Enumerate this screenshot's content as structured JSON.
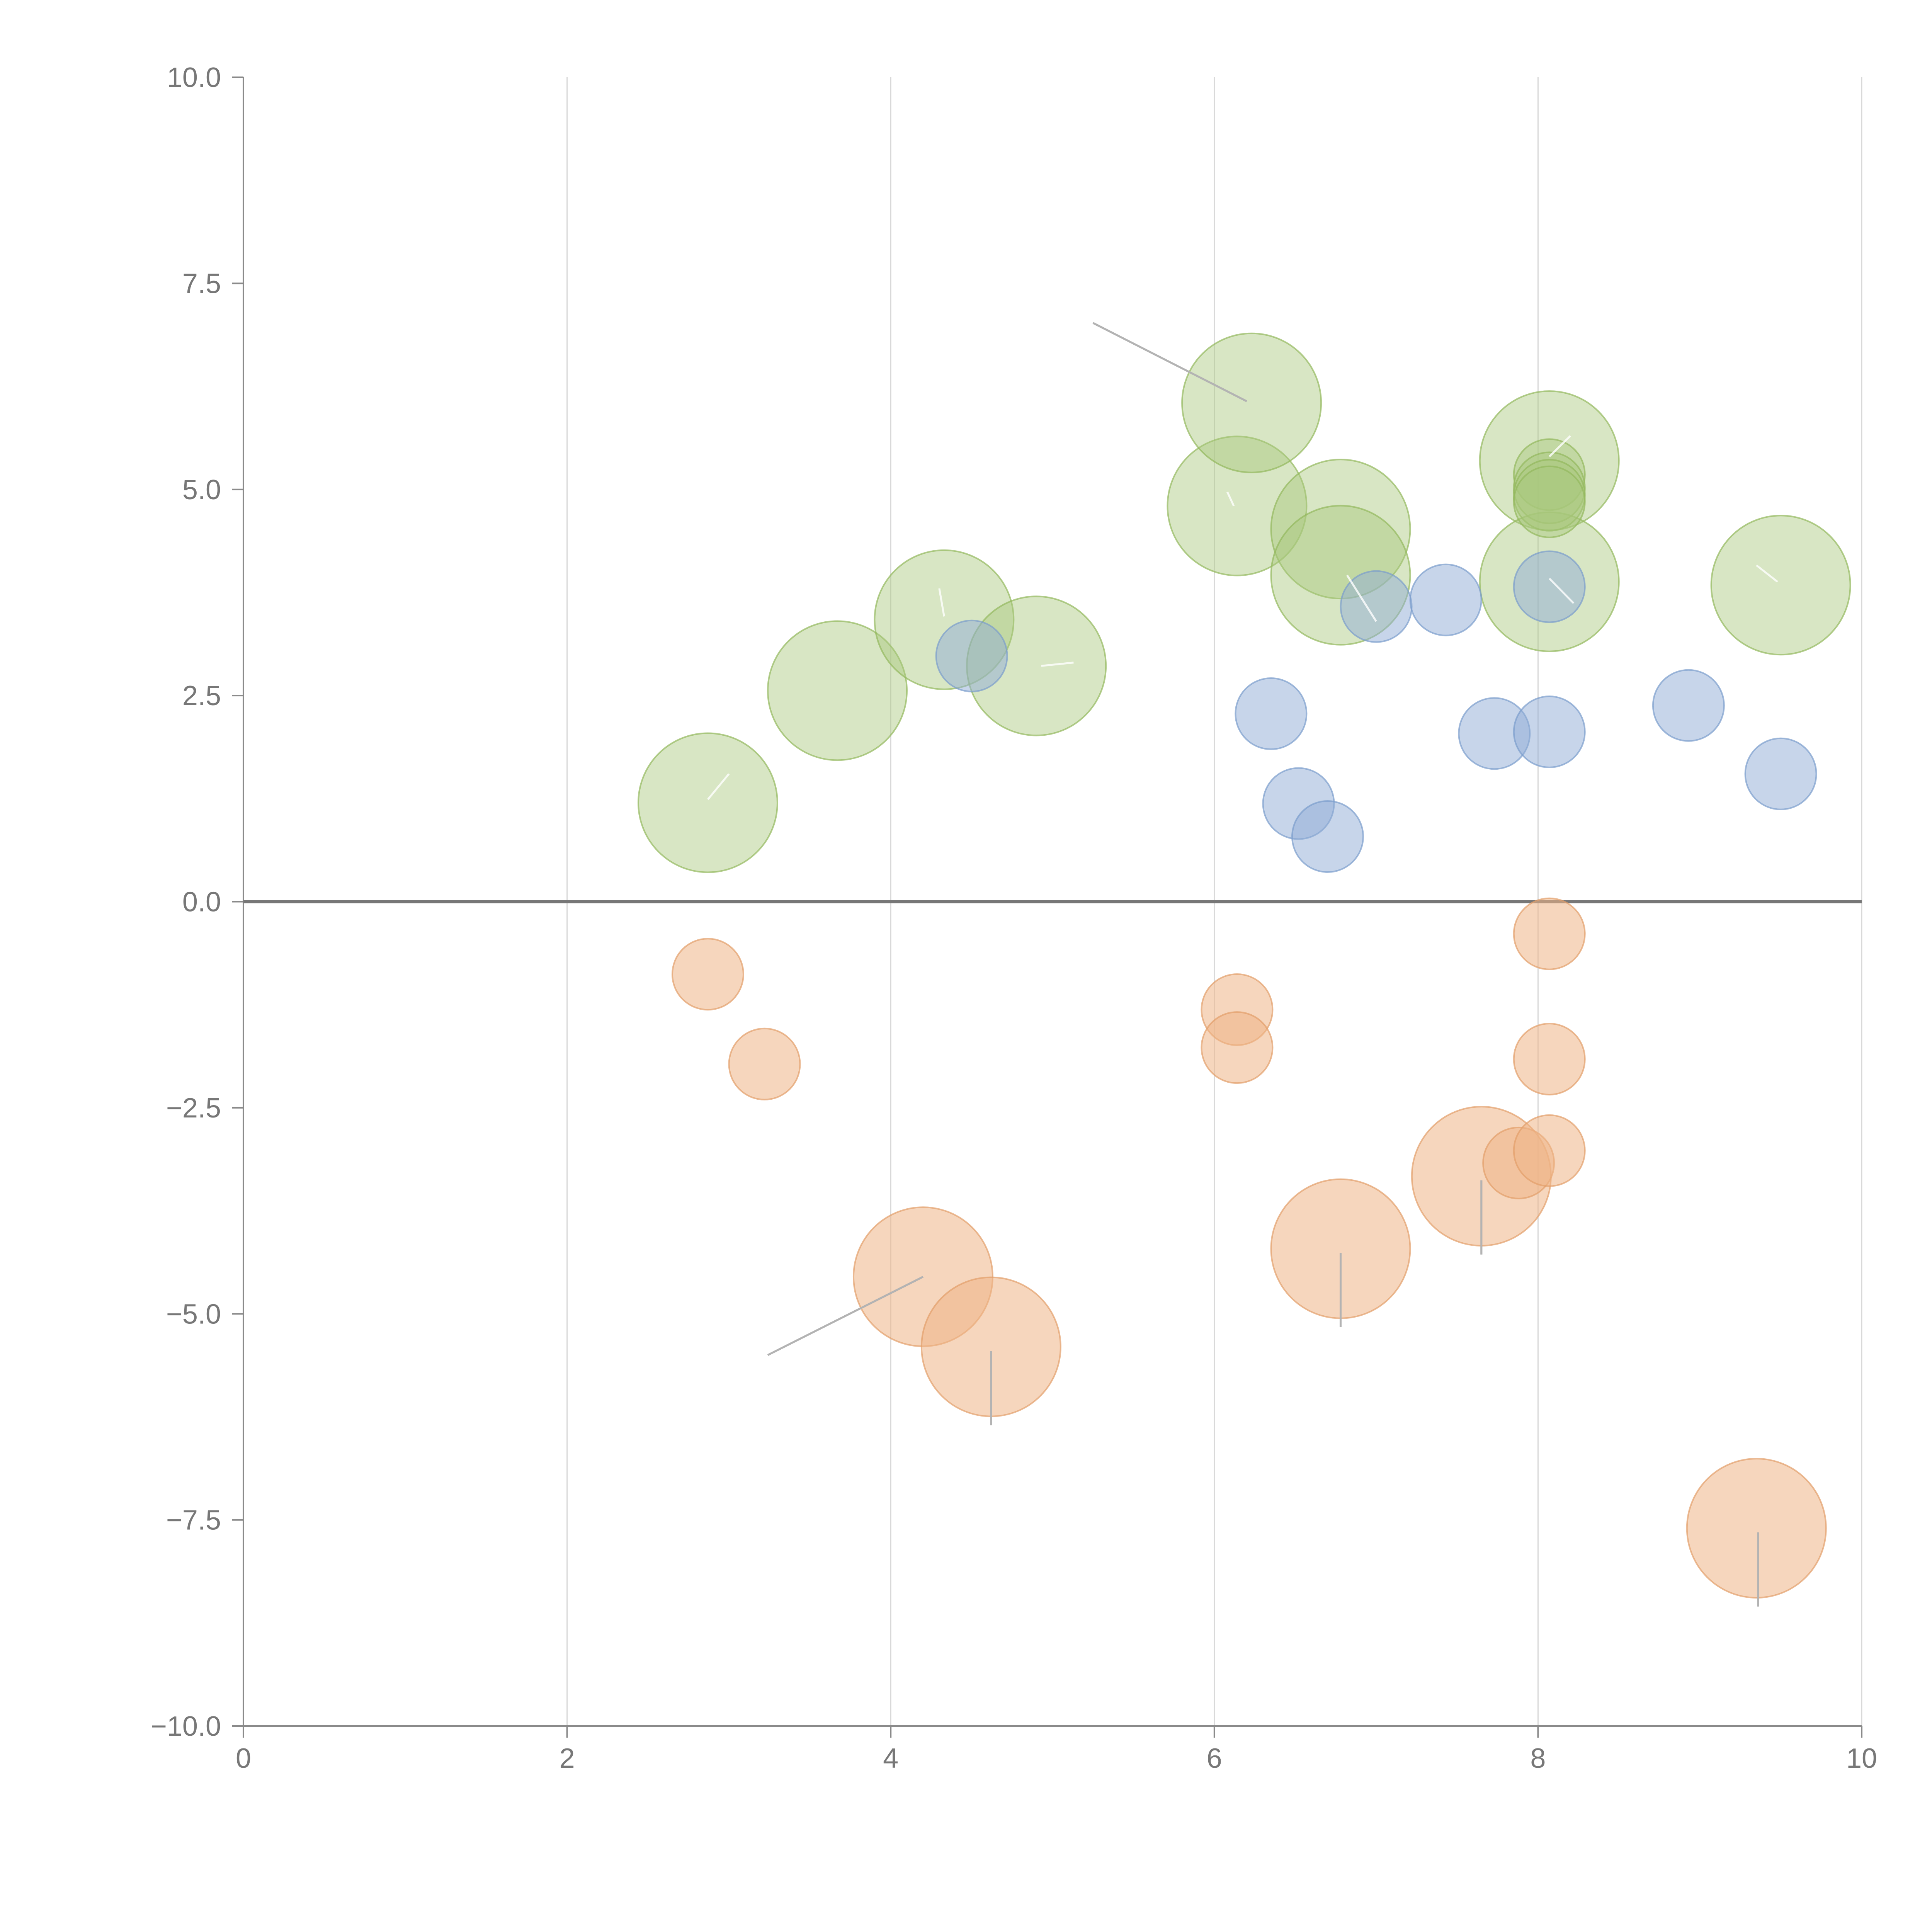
{
  "chart_data": {
    "type": "scatter",
    "title": "",
    "xlabel": "",
    "ylabel": "",
    "xlim": [
      0,
      10
    ],
    "ylim": [
      -10,
      10
    ],
    "grid": {
      "vertical": true,
      "horizontal": false
    },
    "zero_line": true,
    "x_ticks": [
      "0",
      "2",
      "4",
      "6",
      "8",
      "10"
    ],
    "x_tick_values": [
      0,
      2,
      4,
      6,
      8,
      10
    ],
    "y_ticks": [
      "10.0",
      "7.5",
      "5.0",
      "2.5",
      "0.0",
      "−2.5",
      "−5.0",
      "−7.5",
      "−10.0"
    ],
    "y_tick_values": [
      10,
      7.5,
      5,
      2.5,
      0,
      -2.5,
      -5,
      -7.5,
      -10
    ],
    "series": [
      {
        "name": "green",
        "color": "#a9c77d",
        "stroke": "#93b85c",
        "fill_opacity": 0.45,
        "points": [
          {
            "x": 2.87,
            "y": 1.2,
            "size": 4.5
          },
          {
            "x": 3.67,
            "y": 2.56,
            "size": 4.5
          },
          {
            "x": 4.33,
            "y": 3.42,
            "size": 4.5
          },
          {
            "x": 4.9,
            "y": 2.86,
            "size": 4.5
          },
          {
            "x": 6.14,
            "y": 4.8,
            "size": 4.5
          },
          {
            "x": 6.23,
            "y": 6.05,
            "size": 4.5
          },
          {
            "x": 6.78,
            "y": 4.52,
            "size": 4.5
          },
          {
            "x": 6.78,
            "y": 3.96,
            "size": 4.5
          },
          {
            "x": 8.07,
            "y": 5.35,
            "size": 4.5
          },
          {
            "x": 8.07,
            "y": 3.88,
            "size": 4.5
          },
          {
            "x": 9.5,
            "y": 3.84,
            "size": 4.5
          },
          {
            "x": 8.07,
            "y": 5.18,
            "size": 2.3
          },
          {
            "x": 8.07,
            "y": 5.02,
            "size": 2.3
          },
          {
            "x": 8.07,
            "y": 4.93,
            "size": 2.3
          },
          {
            "x": 8.07,
            "y": 4.85,
            "size": 2.3
          }
        ]
      },
      {
        "name": "blue",
        "color": "#8fabd6",
        "stroke": "#7a9ccc",
        "fill_opacity": 0.5,
        "points": [
          {
            "x": 4.5,
            "y": 2.98,
            "size": 2.3
          },
          {
            "x": 6.35,
            "y": 2.28,
            "size": 2.3
          },
          {
            "x": 6.52,
            "y": 1.19,
            "size": 2.3
          },
          {
            "x": 6.7,
            "y": 0.79,
            "size": 2.3
          },
          {
            "x": 7.0,
            "y": 3.58,
            "size": 2.3
          },
          {
            "x": 7.43,
            "y": 3.66,
            "size": 2.3
          },
          {
            "x": 7.73,
            "y": 2.04,
            "size": 2.3
          },
          {
            "x": 8.07,
            "y": 2.06,
            "size": 2.3
          },
          {
            "x": 8.07,
            "y": 3.82,
            "size": 2.3
          },
          {
            "x": 8.93,
            "y": 2.38,
            "size": 2.3
          },
          {
            "x": 9.5,
            "y": 1.55,
            "size": 2.3
          }
        ]
      },
      {
        "name": "orange",
        "color": "#eeb587",
        "stroke": "#e39e6a",
        "fill_opacity": 0.55,
        "points": [
          {
            "x": 2.87,
            "y": -0.88,
            "size": 2.3
          },
          {
            "x": 3.22,
            "y": -1.97,
            "size": 2.3
          },
          {
            "x": 4.2,
            "y": -4.55,
            "size": 4.5
          },
          {
            "x": 4.62,
            "y": -5.4,
            "size": 4.5
          },
          {
            "x": 6.14,
            "y": -1.31,
            "size": 2.3
          },
          {
            "x": 6.14,
            "y": -1.77,
            "size": 2.3
          },
          {
            "x": 6.78,
            "y": -4.21,
            "size": 4.5
          },
          {
            "x": 7.65,
            "y": -3.33,
            "size": 4.5
          },
          {
            "x": 7.88,
            "y": -3.17,
            "size": 2.3
          },
          {
            "x": 8.07,
            "y": -0.39,
            "size": 2.3
          },
          {
            "x": 8.07,
            "y": -1.91,
            "size": 2.3
          },
          {
            "x": 8.07,
            "y": -3.02,
            "size": 2.3
          },
          {
            "x": 9.35,
            "y": -7.6,
            "size": 4.5
          }
        ]
      }
    ],
    "leader_lines": [
      {
        "from": [
          5.25,
          7.02
        ],
        "to": [
          6.2,
          6.07
        ]
      },
      {
        "from": [
          4.2,
          -4.55
        ],
        "to": [
          3.24,
          -5.5
        ]
      },
      {
        "from": [
          4.62,
          -5.45
        ],
        "to": [
          4.62,
          -6.35
        ]
      },
      {
        "from": [
          6.78,
          -4.26
        ],
        "to": [
          6.78,
          -5.16
        ]
      },
      {
        "from": [
          7.65,
          -3.38
        ],
        "to": [
          7.65,
          -4.28
        ]
      },
      {
        "from": [
          9.36,
          -7.65
        ],
        "to": [
          9.36,
          -8.55
        ]
      }
    ],
    "inner_marks": [
      {
        "from": [
          2.87,
          1.24
        ],
        "to": [
          3.0,
          1.55
        ]
      },
      {
        "from": [
          4.33,
          3.46
        ],
        "to": [
          4.3,
          3.8
        ]
      },
      {
        "from": [
          4.93,
          2.86
        ],
        "to": [
          5.13,
          2.9
        ]
      },
      {
        "from": [
          6.08,
          4.97
        ],
        "to": [
          6.12,
          4.8
        ]
      },
      {
        "from": [
          6.82,
          3.96
        ],
        "to": [
          7.0,
          3.4
        ]
      },
      {
        "from": [
          8.07,
          5.4
        ],
        "to": [
          8.2,
          5.65
        ]
      },
      {
        "from": [
          8.07,
          3.92
        ],
        "to": [
          8.22,
          3.62
        ]
      },
      {
        "from": [
          9.35,
          4.08
        ],
        "to": [
          9.48,
          3.88
        ]
      }
    ]
  }
}
